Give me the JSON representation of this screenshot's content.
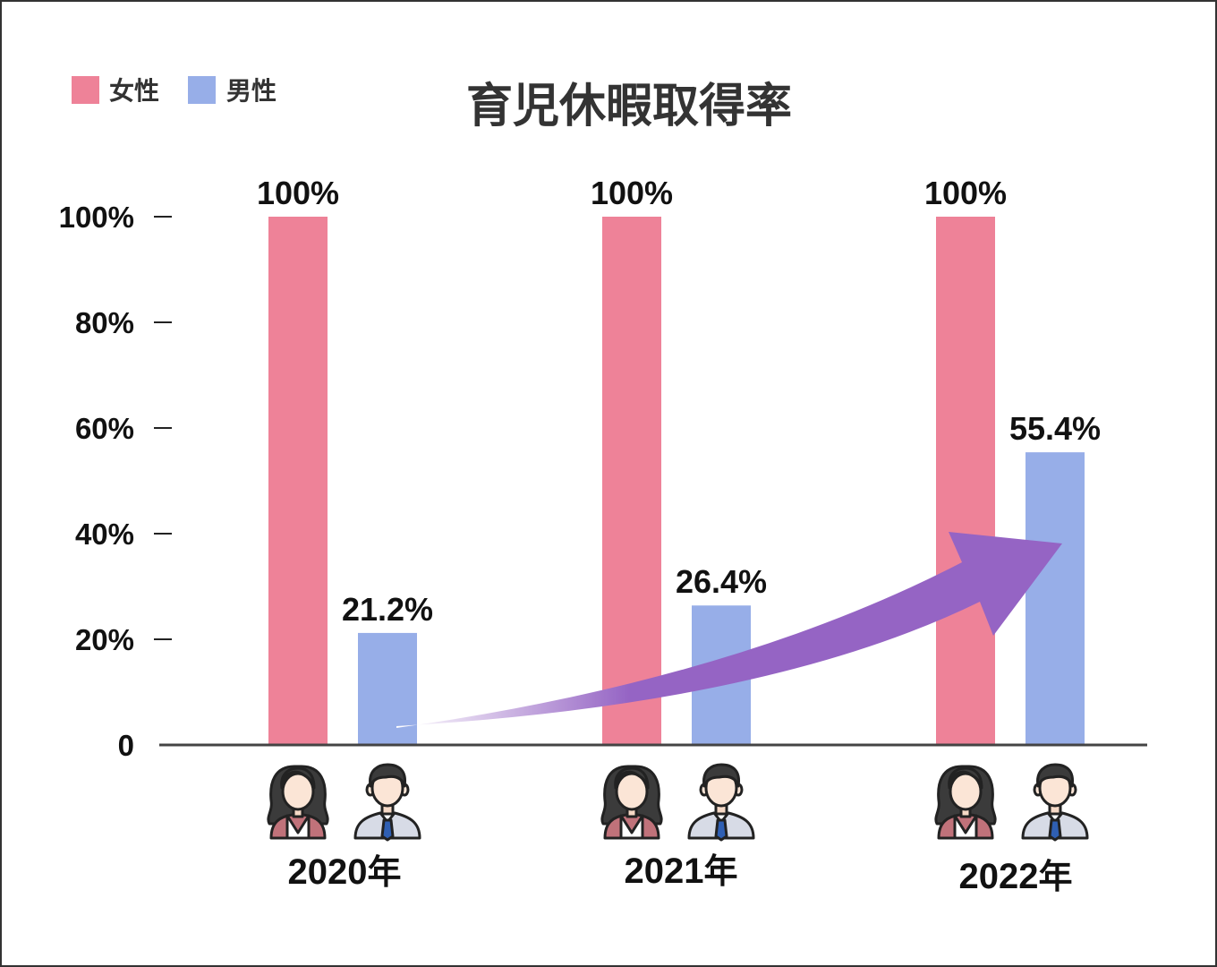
{
  "colors": {
    "female": "#ee8298",
    "male": "#97aee8",
    "arrow": "#9564c4",
    "axis": "#444444",
    "border": "#333333"
  },
  "icons": {
    "female": "woman-avatar-icon",
    "male": "man-avatar-icon"
  },
  "chart_data": {
    "type": "bar",
    "title": "育児休暇取得率",
    "categories": [
      "2020",
      "2021",
      "2022"
    ],
    "category_suffix": "年",
    "series": [
      {
        "name": "女性",
        "values": [
          100,
          100,
          100
        ],
        "labels": [
          "100%",
          "100%",
          "100%"
        ]
      },
      {
        "name": "男性",
        "values": [
          21.2,
          26.4,
          55.4
        ],
        "labels": [
          "21.2%",
          "26.4%",
          "55.4%"
        ]
      }
    ],
    "ylim": [
      0,
      100
    ],
    "yticks": [
      {
        "value": 0,
        "label": "0"
      },
      {
        "value": 20,
        "label": "20%"
      },
      {
        "value": 40,
        "label": "40%"
      },
      {
        "value": 60,
        "label": "60%"
      },
      {
        "value": 80,
        "label": "80%"
      },
      {
        "value": 100,
        "label": "100%"
      }
    ],
    "legend_position": "top-left",
    "grid": false,
    "annotation": "upward trend arrow across male bars"
  }
}
